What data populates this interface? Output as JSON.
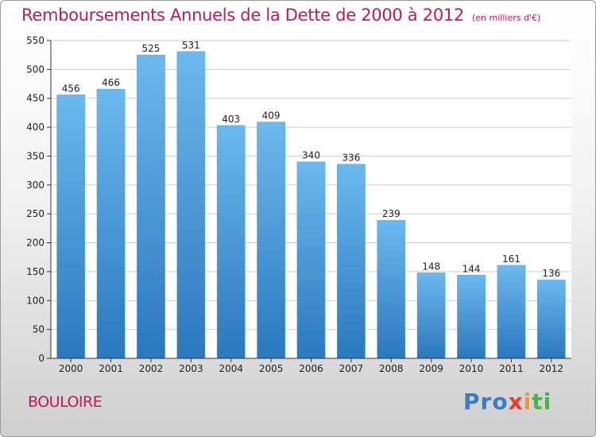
{
  "header": {
    "title": "Remboursements Annuels de la Dette de 2000 à 2012",
    "subtitle": "(en milliers d'€)"
  },
  "footer": {
    "commune": "BOULOIRE",
    "logo_parts": [
      "Pro",
      "x",
      "i",
      "ti"
    ]
  },
  "colors": {
    "title": "#c2185b",
    "bar_light": "#6cb8ef",
    "bar_dark": "#2a78bd",
    "grid": "#cccccc"
  },
  "chart_data": {
    "type": "bar",
    "title": "Remboursements Annuels de la Dette de 2000 à 2012",
    "subtitle": "(en milliers d'€)",
    "categories": [
      "2000",
      "2001",
      "2002",
      "2003",
      "2004",
      "2005",
      "2006",
      "2007",
      "2008",
      "2009",
      "2010",
      "2011",
      "2012"
    ],
    "values": [
      456,
      466,
      525,
      531,
      403,
      409,
      340,
      336,
      239,
      148,
      144,
      161,
      136
    ],
    "ylim": [
      0,
      550
    ],
    "yticks": [
      0,
      50,
      100,
      150,
      200,
      250,
      300,
      350,
      400,
      450,
      500,
      550
    ],
    "grid": true,
    "xlabel": "",
    "ylabel": ""
  }
}
